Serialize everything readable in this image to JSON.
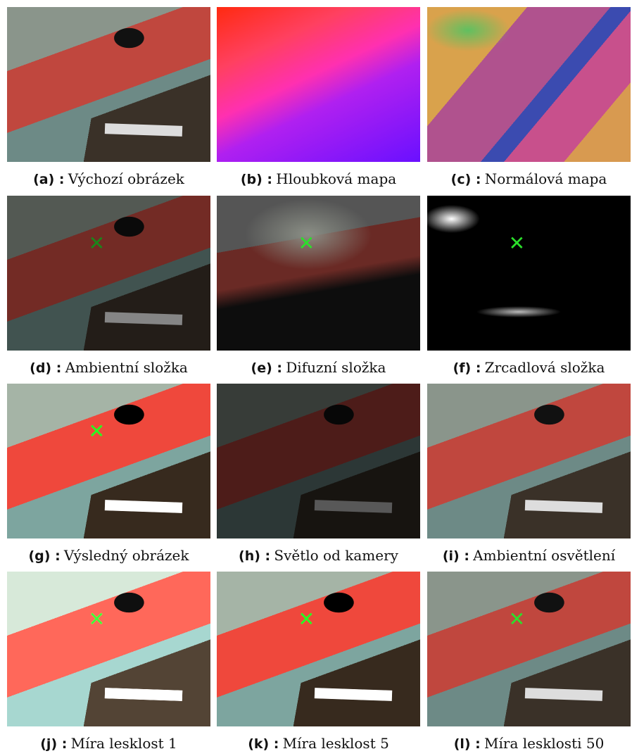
{
  "figure": {
    "panels": [
      {
        "label": "(a) :",
        "text": "Výchozí obrázek"
      },
      {
        "label": "(b) :",
        "text": "Hloubková mapa"
      },
      {
        "label": "(c) :",
        "text": "Normálová mapa"
      },
      {
        "label": "(d) :",
        "text": "Ambientní složka"
      },
      {
        "label": "(e) :",
        "text": "Difuzní složka"
      },
      {
        "label": "(f) :",
        "text": "Zrcadlová složka"
      },
      {
        "label": "(g) :",
        "text": "Výsledný obrázek"
      },
      {
        "label": "(h) :",
        "text": "Světlo od kamery"
      },
      {
        "label": "(i) :",
        "text": "Ambientní osvětlení"
      },
      {
        "label": "(j) :",
        "text": "Míra lesklost 1"
      },
      {
        "label": "(k) :",
        "text": "Míra lesklost 5"
      },
      {
        "label": "(l) :",
        "text": "Míra lesklosti 50"
      }
    ]
  }
}
